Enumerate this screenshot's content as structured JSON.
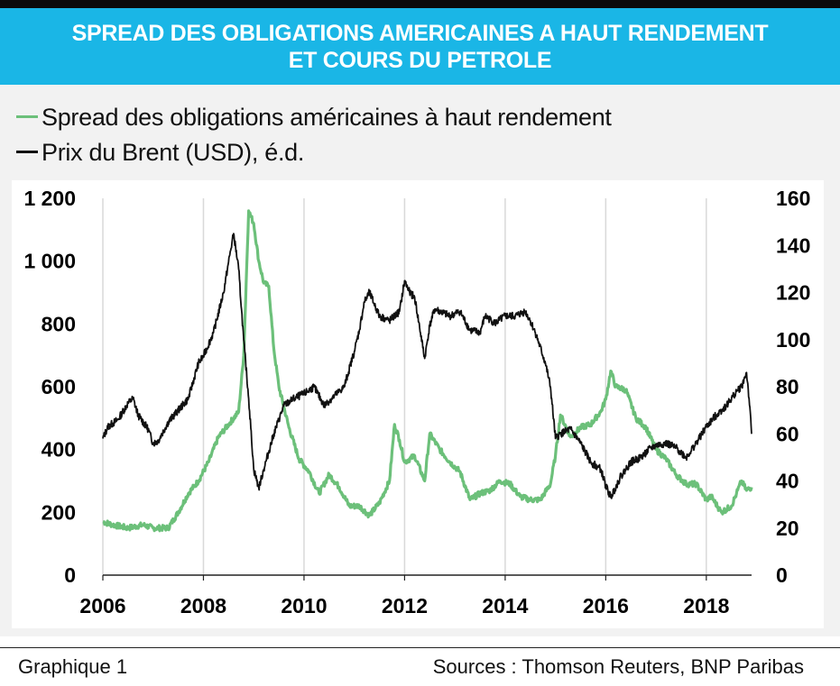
{
  "header": {
    "title_line1": "SPREAD DES OBLIGATIONS AMERICAINES A HAUT RENDEMENT",
    "title_line2": "ET COURS DU PETROLE"
  },
  "footer": {
    "left": "Graphique 1",
    "right": "Sources : Thomson Reuters, BNP Paribas"
  },
  "colors": {
    "banner": "#1ab6e6",
    "spread": "#6cc07a",
    "brent": "#111111"
  },
  "chart_data": {
    "type": "line",
    "x_range": [
      2006,
      2018.9
    ],
    "x_ticks": [
      "2006",
      "2008",
      "2010",
      "2012",
      "2014",
      "2016",
      "2018"
    ],
    "y_left": {
      "range": [
        0,
        1200
      ],
      "ticks": [
        "0",
        "200",
        "400",
        "600",
        "800",
        "1 000",
        "1 200"
      ]
    },
    "y_right": {
      "range": [
        0,
        160
      ],
      "ticks": [
        "0",
        "20",
        "40",
        "60",
        "80",
        "100",
        "120",
        "140",
        "160"
      ]
    },
    "grid": "vertical",
    "legend_position": "top-left",
    "series": [
      {
        "name": "Spread des obligations américaines à haut rendement",
        "axis": "left",
        "color": "#6cc07a",
        "x": [
          2006.0,
          2006.2,
          2006.5,
          2006.8,
          2007.0,
          2007.3,
          2007.5,
          2007.7,
          2007.9,
          2008.1,
          2008.3,
          2008.5,
          2008.7,
          2008.8,
          2008.9,
          2009.0,
          2009.1,
          2009.2,
          2009.3,
          2009.4,
          2009.5,
          2009.7,
          2009.9,
          2010.1,
          2010.3,
          2010.5,
          2010.7,
          2010.9,
          2011.1,
          2011.3,
          2011.5,
          2011.7,
          2011.8,
          2011.9,
          2012.0,
          2012.2,
          2012.4,
          2012.5,
          2012.7,
          2012.9,
          2013.1,
          2013.3,
          2013.5,
          2013.7,
          2013.9,
          2014.1,
          2014.3,
          2014.5,
          2014.7,
          2014.9,
          2015.0,
          2015.1,
          2015.3,
          2015.5,
          2015.7,
          2015.9,
          2016.0,
          2016.1,
          2016.2,
          2016.4,
          2016.6,
          2016.8,
          2017.0,
          2017.2,
          2017.4,
          2017.6,
          2017.8,
          2018.0,
          2018.1,
          2018.3,
          2018.5,
          2018.6,
          2018.7,
          2018.8,
          2018.9
        ],
        "y": [
          170,
          160,
          150,
          160,
          150,
          150,
          200,
          260,
          300,
          360,
          440,
          480,
          520,
          700,
          1160,
          1120,
          1000,
          930,
          920,
          720,
          600,
          470,
          370,
          330,
          260,
          320,
          280,
          220,
          220,
          190,
          230,
          300,
          480,
          430,
          360,
          380,
          300,
          450,
          400,
          360,
          330,
          240,
          260,
          270,
          300,
          290,
          250,
          240,
          240,
          290,
          380,
          510,
          440,
          470,
          480,
          520,
          560,
          650,
          600,
          590,
          500,
          470,
          400,
          370,
          320,
          290,
          290,
          240,
          250,
          200,
          220,
          260,
          300,
          270,
          280
        ]
      },
      {
        "name": "Prix du Brent (USD), é.d.",
        "axis": "right",
        "color": "#111111",
        "x": [
          2006.0,
          2006.1,
          2006.3,
          2006.5,
          2006.6,
          2006.7,
          2006.9,
          2007.0,
          2007.1,
          2007.3,
          2007.5,
          2007.7,
          2007.9,
          2008.0,
          2008.2,
          2008.4,
          2008.5,
          2008.6,
          2008.7,
          2008.8,
          2008.9,
          2009.0,
          2009.1,
          2009.2,
          2009.4,
          2009.6,
          2009.8,
          2010.0,
          2010.2,
          2010.4,
          2010.6,
          2010.8,
          2011.0,
          2011.1,
          2011.2,
          2011.3,
          2011.5,
          2011.7,
          2011.9,
          2012.0,
          2012.1,
          2012.2,
          2012.3,
          2012.4,
          2012.5,
          2012.6,
          2012.7,
          2012.9,
          2013.1,
          2013.3,
          2013.5,
          2013.6,
          2013.8,
          2014.0,
          2014.2,
          2014.4,
          2014.5,
          2014.6,
          2014.8,
          2014.9,
          2015.0,
          2015.1,
          2015.3,
          2015.5,
          2015.7,
          2015.9,
          2016.0,
          2016.1,
          2016.3,
          2016.5,
          2016.7,
          2016.9,
          2017.0,
          2017.2,
          2017.4,
          2017.6,
          2017.8,
          2018.0,
          2018.2,
          2018.4,
          2018.6,
          2018.7,
          2018.8,
          2018.85,
          2018.9
        ],
        "y": [
          58,
          63,
          66,
          73,
          75,
          68,
          62,
          56,
          57,
          65,
          70,
          75,
          90,
          93,
          103,
          120,
          133,
          145,
          130,
          100,
          75,
          45,
          37,
          45,
          60,
          72,
          75,
          77,
          80,
          72,
          76,
          80,
          95,
          104,
          116,
          120,
          110,
          108,
          112,
          125,
          120,
          118,
          105,
          92,
          106,
          113,
          112,
          110,
          112,
          104,
          103,
          110,
          107,
          110,
          110,
          112,
          108,
          103,
          90,
          80,
          58,
          60,
          62,
          56,
          48,
          45,
          38,
          33,
          42,
          48,
          50,
          54,
          55,
          56,
          54,
          50,
          56,
          63,
          68,
          72,
          78,
          80,
          86,
          75,
          60
        ]
      }
    ]
  }
}
